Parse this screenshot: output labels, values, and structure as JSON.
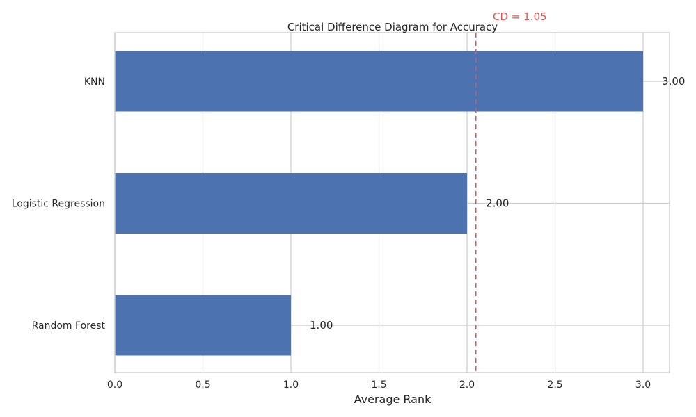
{
  "chart_data": {
    "type": "bar",
    "orientation": "horizontal",
    "title": "Critical Difference Diagram for Accuracy",
    "xlabel": "Average Rank",
    "ylabel": "",
    "categories": [
      "Random Forest",
      "Logistic Regression",
      "KNN"
    ],
    "values": [
      1.0,
      2.0,
      3.0
    ],
    "value_labels": [
      "1.00",
      "2.00",
      "3.00"
    ],
    "xlim": [
      0,
      3.15
    ],
    "xticks": [
      0.0,
      0.5,
      1.0,
      1.5,
      2.0,
      2.5,
      3.0
    ],
    "xtick_labels": [
      "0.0",
      "0.5",
      "1.0",
      "1.5",
      "2.0",
      "2.5",
      "3.0"
    ],
    "grid": true,
    "bar_color": "#4c72b0",
    "critical_difference": {
      "value": 1.05,
      "x": 2.05,
      "label": "CD = 1.05",
      "color": "#dd5555",
      "style": "dashed"
    }
  }
}
